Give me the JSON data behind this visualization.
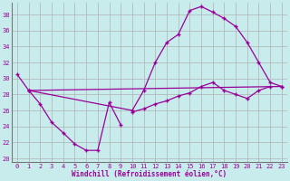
{
  "xlabel": "Windchill (Refroidissement éolien,°C)",
  "bg_color": "#c8ecec",
  "line_color": "#990099",
  "grid_color": "#b0b0b0",
  "xlim": [
    -0.5,
    23.5
  ],
  "ylim": [
    19.5,
    39.5
  ],
  "yticks": [
    20,
    22,
    24,
    26,
    28,
    30,
    32,
    34,
    36,
    38
  ],
  "xticks": [
    0,
    1,
    2,
    3,
    4,
    5,
    6,
    7,
    8,
    9,
    10,
    11,
    12,
    13,
    14,
    15,
    16,
    17,
    18,
    19,
    20,
    21,
    22,
    23
  ],
  "series": [
    {
      "x": [
        0,
        1,
        2,
        3,
        4,
        5,
        6,
        7,
        8,
        9
      ],
      "y": [
        30.5,
        28.5,
        26.8,
        24.5,
        23.2,
        21.8,
        21.0,
        21.0,
        27.0,
        24.2
      ]
    },
    {
      "x": [
        1,
        10,
        11,
        12,
        13,
        14,
        15,
        16,
        17,
        18,
        19,
        20,
        21,
        22,
        23
      ],
      "y": [
        28.5,
        26.0,
        28.5,
        32.0,
        34.5,
        35.5,
        38.5,
        39.0,
        38.3,
        37.5,
        36.5,
        34.5,
        32.0,
        29.5,
        29.0
      ]
    },
    {
      "x": [
        1,
        23
      ],
      "y": [
        28.5,
        29.0
      ]
    },
    {
      "x": [
        10,
        11,
        12,
        13,
        14,
        15,
        16,
        17,
        18,
        19,
        20,
        21,
        22
      ],
      "y": [
        25.8,
        26.2,
        26.8,
        27.2,
        27.8,
        28.2,
        29.0,
        29.5,
        28.5,
        28.0,
        27.5,
        28.5,
        29.0
      ]
    }
  ]
}
